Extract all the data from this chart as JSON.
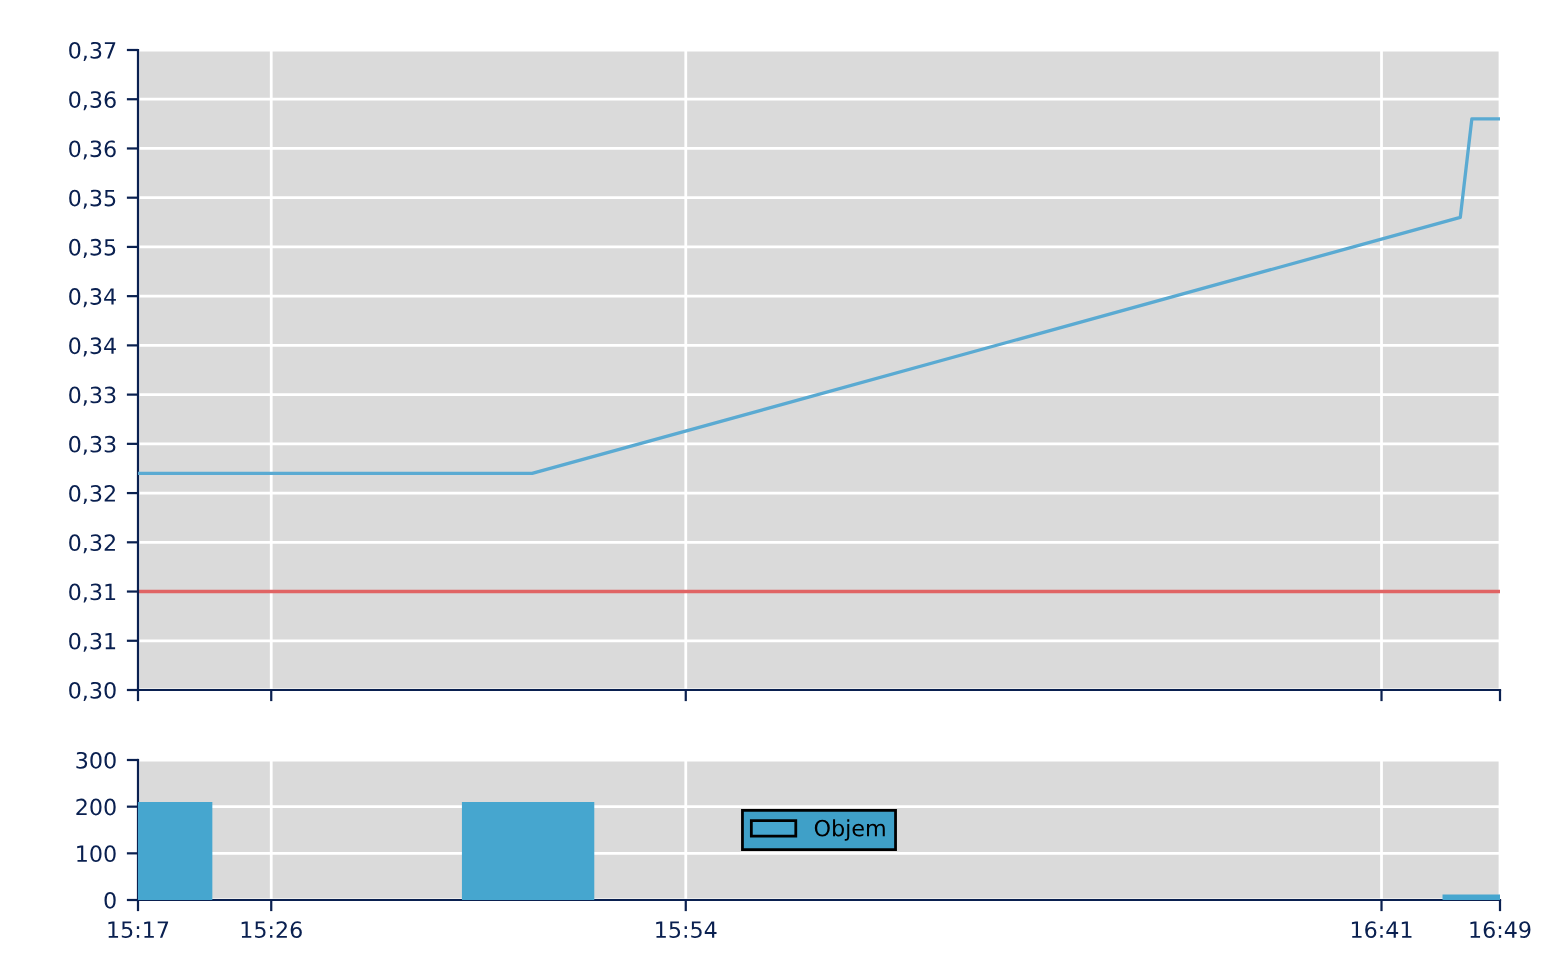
{
  "chart_data": [
    {
      "type": "line",
      "xlim": [
        15.2833,
        16.8167
      ],
      "xticks": [
        15.2833,
        15.4333,
        15.9,
        16.6833,
        16.8167
      ],
      "ylim": [
        0.3,
        0.365
      ],
      "yticks": [
        {
          "value": 0.3,
          "label": "0,30"
        },
        {
          "value": 0.305,
          "label": "0,31"
        },
        {
          "value": 0.31,
          "label": "0,31"
        },
        {
          "value": 0.315,
          "label": "0,32"
        },
        {
          "value": 0.32,
          "label": "0,32"
        },
        {
          "value": 0.325,
          "label": "0,33"
        },
        {
          "value": 0.33,
          "label": "0,33"
        },
        {
          "value": 0.335,
          "label": "0,34"
        },
        {
          "value": 0.34,
          "label": "0,34"
        },
        {
          "value": 0.345,
          "label": "0,35"
        },
        {
          "value": 0.35,
          "label": "0,35"
        },
        {
          "value": 0.355,
          "label": "0,36"
        },
        {
          "value": 0.36,
          "label": "0,36"
        },
        {
          "value": 0.365,
          "label": "0,37"
        }
      ],
      "tick_labels": "y",
      "grid": true,
      "legend": false,
      "series": [
        {
          "color": "#5aaad2",
          "x": [
            15.2833,
            15.727,
            16.772,
            16.785,
            16.8167
          ],
          "values": [
            0.322,
            0.322,
            0.348,
            0.358,
            0.358
          ]
        }
      ],
      "ref_lines": [
        {
          "axis": "y",
          "value": 0.31,
          "color": "#e06464"
        }
      ]
    },
    {
      "type": "histogram",
      "bins": [
        15.2833,
        15.367,
        15.648,
        15.797,
        16.752,
        16.8167
      ],
      "xlim": [
        15.2833,
        16.8167
      ],
      "xticks": [
        {
          "value": 15.2833,
          "label": "15:17"
        },
        {
          "value": 15.4333,
          "label": "15:26"
        },
        {
          "value": 15.9,
          "label": "15:54"
        },
        {
          "value": 16.6833,
          "label": "16:41"
        },
        {
          "value": 16.8167,
          "label": "16:49"
        }
      ],
      "ylim": [
        0,
        300
      ],
      "yticks": [
        0,
        100,
        200,
        300
      ],
      "grid": true,
      "legend": "center",
      "series": [
        {
          "name": "Objem",
          "color": "#46a6cf",
          "values": [
            210,
            0,
            210,
            0,
            12
          ]
        }
      ]
    }
  ]
}
